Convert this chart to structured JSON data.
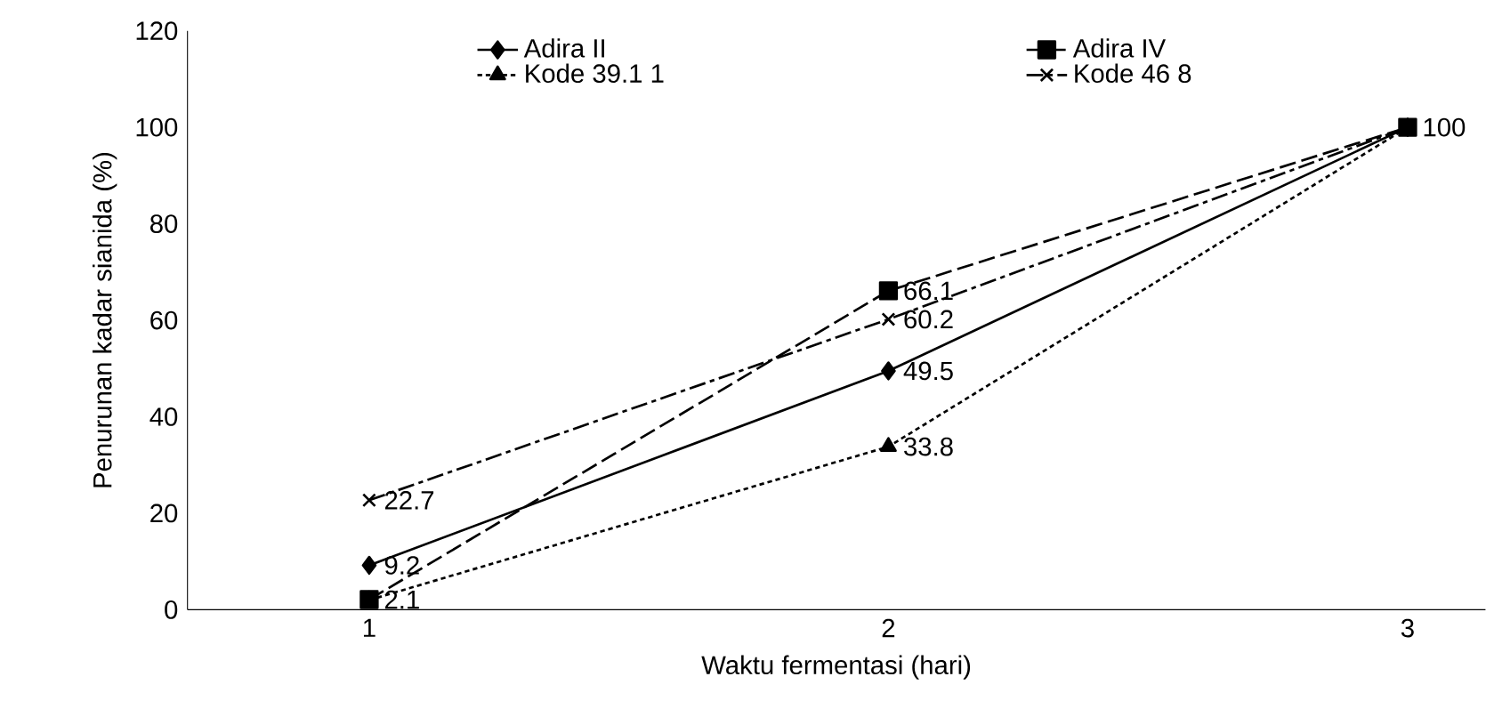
{
  "chart_data": {
    "type": "line",
    "xlabel": "Waktu fermentasi (hari)",
    "ylabel": "Penurunan kadar sianida (%)",
    "x": [
      1,
      2,
      3
    ],
    "xlim": [
      0.65,
      3.15
    ],
    "xticks": [
      1,
      2,
      3
    ],
    "ylim": [
      0,
      120
    ],
    "yticks": [
      0,
      20,
      40,
      60,
      80,
      100,
      120
    ],
    "legend": "top",
    "grid": false,
    "series": [
      {
        "name": "Adira II",
        "color": "#000000",
        "marker": "diamond",
        "line_style": "solid",
        "values": [
          9.2,
          49.5,
          100
        ],
        "value_labels": [
          "9.2",
          "49.5",
          null
        ]
      },
      {
        "name": "Adira IV",
        "color": "#000000",
        "marker": "square",
        "line_style": "dashed",
        "values": [
          2.1,
          66.1,
          100
        ],
        "value_labels": [
          "2.1",
          "66.1",
          "100"
        ]
      },
      {
        "name": "Kode 39.1 1",
        "color": "#000000",
        "marker": "triangle",
        "line_style": "dotted",
        "values": [
          2,
          33.8,
          100
        ],
        "value_labels": [
          null,
          "33.8",
          null
        ]
      },
      {
        "name": "Kode 46 8",
        "color": "#000000",
        "marker": "cross",
        "line_style": "dashdot",
        "values": [
          22.7,
          60.2,
          100
        ],
        "value_labels": [
          "22.7",
          "60.2",
          null
        ]
      }
    ]
  }
}
